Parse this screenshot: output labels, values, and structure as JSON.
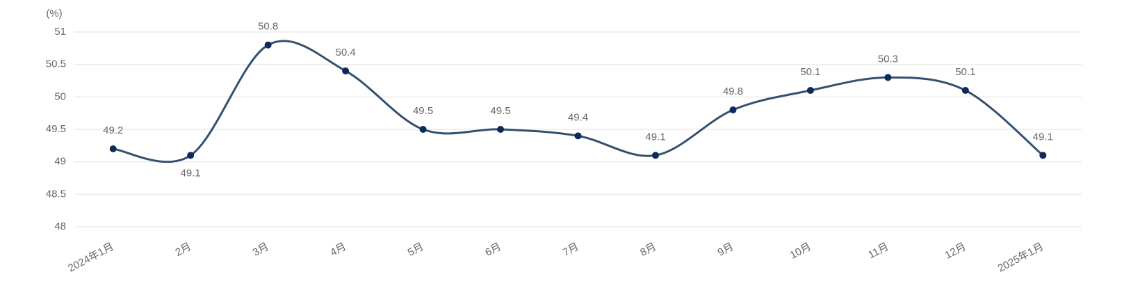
{
  "chart_data": {
    "type": "line",
    "y_label": "(%)",
    "categories": [
      "2024年1月",
      "2月",
      "3月",
      "4月",
      "5月",
      "6月",
      "7月",
      "8月",
      "9月",
      "10月",
      "11月",
      "12月",
      "2025年1月"
    ],
    "series": [
      {
        "color": "#34506e",
        "values": [
          49.2,
          49.1,
          50.8,
          50.4,
          49.5,
          49.5,
          49.4,
          49.1,
          49.8,
          50.1,
          50.3,
          50.1,
          49.1
        ]
      }
    ],
    "ylim": [
      48,
      51
    ],
    "yticks": [
      48,
      48.5,
      49,
      49.5,
      50,
      50.5,
      51
    ],
    "grid": true
  }
}
